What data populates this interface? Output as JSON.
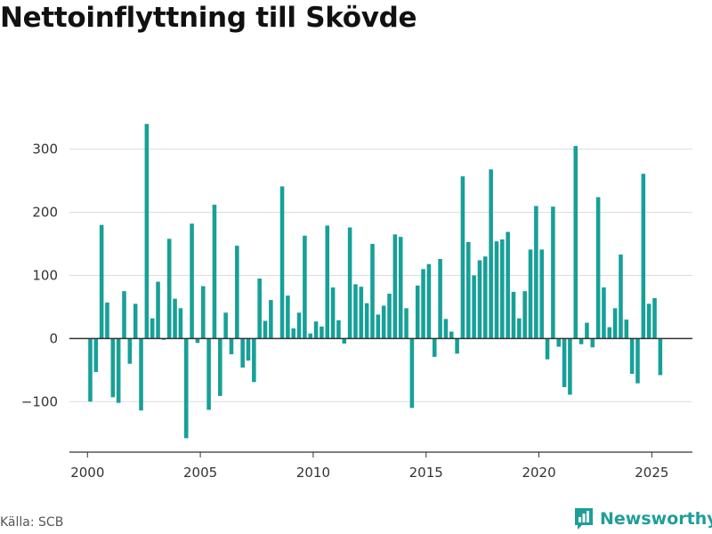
{
  "title": "Nettoinflyttning till Skövde",
  "source": "Källa: SCB",
  "brand": {
    "name": "Newsworthy",
    "icon": "newsworthy-logo-icon",
    "color": "#1f9e98"
  },
  "colors": {
    "bar": "#17a098",
    "grid": "#dddddd",
    "zero": "#333333",
    "axis": "#333333"
  },
  "chart_data": {
    "type": "bar",
    "title": "Nettoinflyttning till Skövde",
    "xlabel": "",
    "ylabel": "",
    "ylim": [
      -180,
      370
    ],
    "xlim": [
      1999.2,
      2026.8
    ],
    "y_ticks": [
      -100,
      0,
      100,
      200,
      300
    ],
    "y_tick_labels": [
      "−100",
      "0",
      "100",
      "200",
      "300"
    ],
    "x_ticks": [
      2000,
      2005,
      2010,
      2015,
      2020,
      2025
    ],
    "x_tick_labels": [
      "2000",
      "2005",
      "2010",
      "2015",
      "2020",
      "2025"
    ],
    "grid": "horizontal",
    "series": [
      {
        "x": [
          2000.0,
          2000.25,
          2000.5,
          2000.75,
          2001.0,
          2001.25,
          2001.5,
          2001.75,
          2002.0,
          2002.25,
          2002.5,
          2002.75,
          2003.0,
          2003.25,
          2003.5,
          2003.75,
          2004.0,
          2004.25,
          2004.5,
          2004.75,
          2005.0,
          2005.25,
          2005.5,
          2005.75,
          2006.0,
          2006.25,
          2006.5,
          2006.75,
          2007.0,
          2007.25,
          2007.5,
          2007.75,
          2008.0,
          2008.25,
          2008.5,
          2008.75,
          2009.0,
          2009.25,
          2009.5,
          2009.75,
          2010.0,
          2010.25,
          2010.5,
          2010.75,
          2011.0,
          2011.25,
          2011.5,
          2011.75,
          2012.0,
          2012.25,
          2012.5,
          2012.75,
          2013.0,
          2013.25,
          2013.5,
          2013.75,
          2014.0,
          2014.25,
          2014.5,
          2014.75,
          2015.0,
          2015.25,
          2015.5,
          2015.75,
          2016.0,
          2016.25,
          2016.5,
          2016.75,
          2017.0,
          2017.25,
          2017.5,
          2017.75,
          2018.0,
          2018.25,
          2018.5,
          2018.75,
          2019.0,
          2019.25,
          2019.5,
          2019.75,
          2020.0,
          2020.25,
          2020.5,
          2020.75,
          2021.0,
          2021.25,
          2021.5,
          2021.75,
          2022.0,
          2022.25,
          2022.5,
          2022.75,
          2023.0,
          2023.25,
          2023.5,
          2023.75,
          2024.0,
          2024.25,
          2024.5,
          2024.75,
          2025.0,
          2025.25
        ],
        "values": [
          -100,
          -53,
          180,
          57,
          -93,
          -102,
          75,
          -40,
          55,
          -114,
          340,
          32,
          90,
          -2,
          158,
          63,
          48,
          -158,
          182,
          -7,
          83,
          -113,
          212,
          -91,
          41,
          -25,
          147,
          -46,
          -35,
          -69,
          95,
          28,
          61,
          0,
          241,
          68,
          16,
          41,
          163,
          8,
          27,
          19,
          179,
          81,
          29,
          -8,
          176,
          86,
          82,
          56,
          150,
          38,
          52,
          71,
          165,
          161,
          48,
          -110,
          84,
          110,
          118,
          -29,
          126,
          31,
          11,
          -24,
          257,
          153,
          100,
          124,
          130,
          268,
          154,
          157,
          169,
          74,
          32,
          75,
          141,
          210,
          141,
          -33,
          209,
          -13,
          -77,
          -89,
          305,
          -9,
          25,
          -14,
          224,
          81,
          18,
          48,
          133,
          30,
          -56,
          -71,
          261,
          55,
          64,
          -58
        ]
      }
    ]
  }
}
